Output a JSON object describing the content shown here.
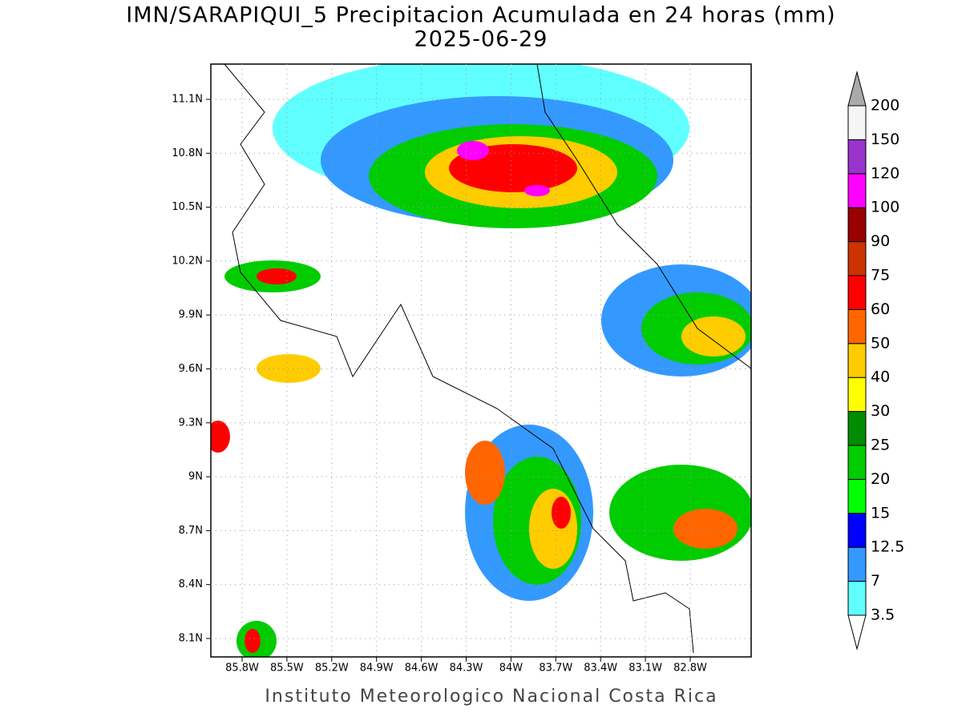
{
  "title": "IMN/SARAPIQUI_5 Precipitacion Acumulada en 24 horas (mm)",
  "subtitle": "2025-06-29",
  "map": {
    "lat_labels": [
      "11.1N",
      "10.8N",
      "10.5N",
      "10.2N",
      "9.9N",
      "9.6N",
      "9.3N",
      "9N",
      "8.7N",
      "8.4N",
      "8.1N"
    ],
    "lon_labels": [
      "85.8W",
      "85.5W",
      "85.2W",
      "84.9W",
      "84.6W",
      "84.3W",
      "84W",
      "83.7W",
      "83.4W",
      "83.1W",
      "82.8W"
    ]
  },
  "colorbar": {
    "levels": [
      3.5,
      7,
      12.5,
      15,
      20,
      25,
      30,
      40,
      50,
      60,
      75,
      90,
      100,
      120,
      150,
      200
    ],
    "colors": [
      "#60ffff",
      "#3399ff",
      "#0000ff",
      "#00ff00",
      "#00cc00",
      "#008c00",
      "#ffff00",
      "#ffcc00",
      "#ff6600",
      "#ff0000",
      "#cc3300",
      "#990000",
      "#ff00ff",
      "#9933cc",
      "#f5f5f5"
    ],
    "under_color": "#ffffff",
    "over_color": "#aaaaaa"
  },
  "footer": "Instituto Meteorologico Nacional Costa Rica"
}
